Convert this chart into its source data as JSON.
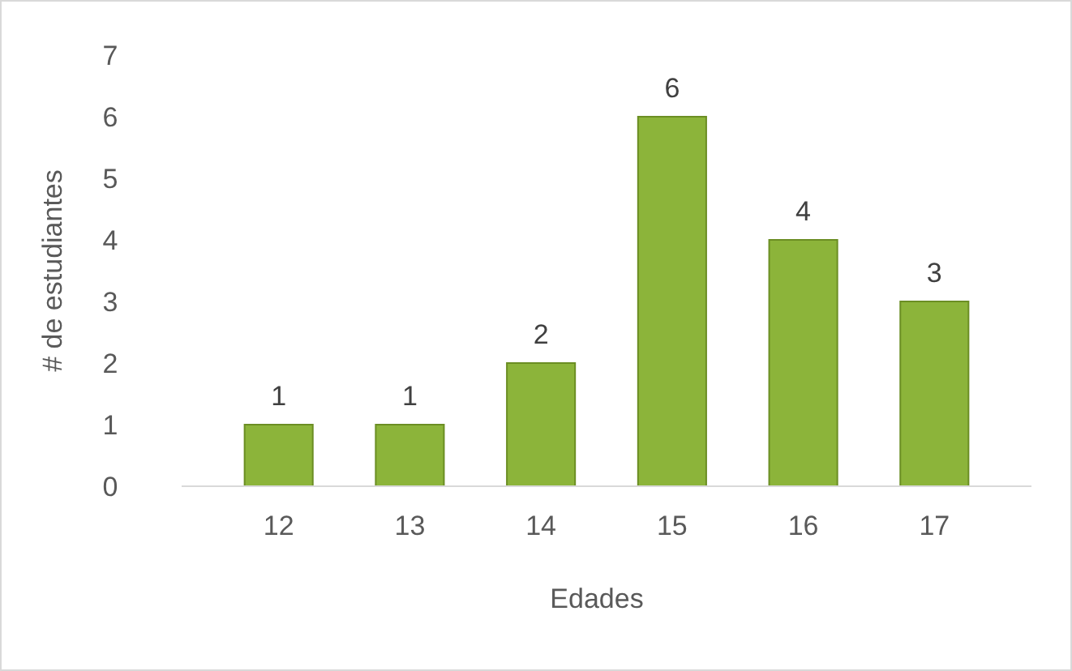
{
  "chart_data": {
    "type": "bar",
    "xlabel": "Edades",
    "ylabel": "# de estudiantes",
    "categories": [
      "12",
      "13",
      "14",
      "15",
      "16",
      "17"
    ],
    "values": [
      1,
      1,
      2,
      6,
      4,
      3
    ],
    "color": "#8cb43a",
    "ylim": [
      0,
      7
    ],
    "yticks": [
      0,
      1,
      2,
      3,
      4,
      5,
      6,
      7
    ],
    "data_labels": true,
    "grid": false
  }
}
